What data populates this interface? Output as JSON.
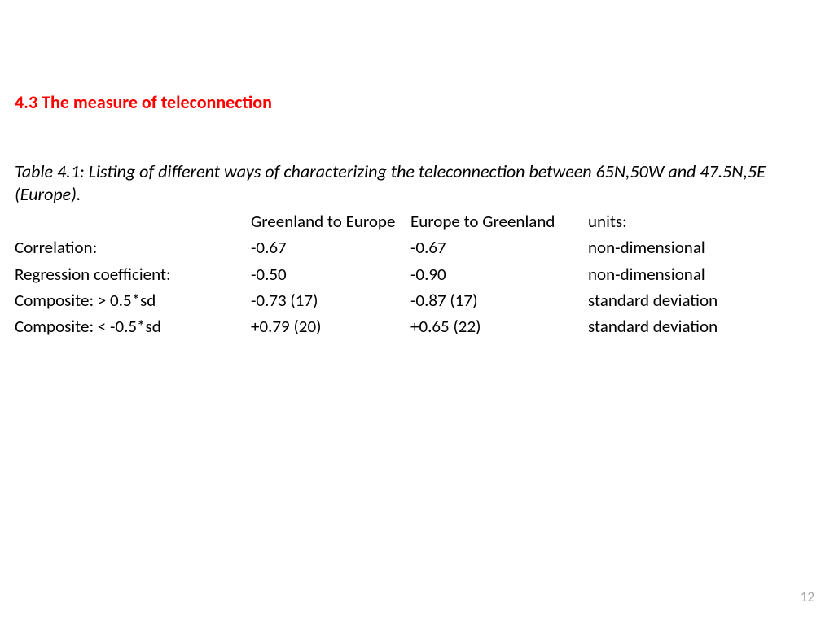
{
  "heading": "4.3 The measure of teleconnection",
  "caption": "Table 4.1: Listing of different ways of characterizing the teleconnection between 65N,50W and 47.5N,5E (Europe).",
  "table": {
    "header": {
      "label": "",
      "col1": "Greenland to Europe",
      "col2": "Europe to Greenland",
      "col3": "units:"
    },
    "rows": [
      {
        "label": "Correlation:",
        "col1": "-0.67",
        "col2": "-0.67",
        "col3": "non-dimensional",
        "units_align": "right"
      },
      {
        "label": "Regression coefficient:",
        "col1": "-0.50",
        "col2": "-0.90",
        "col3": "non-dimensional",
        "units_align": "right"
      },
      {
        "label": "Composite: > 0.5*sd",
        "col1": "-0.73 (17)",
        "col2": "-0.87 (17)",
        "col3": "standard deviation",
        "units_align": "left"
      },
      {
        "label": "Composite: < -0.5*sd",
        "col1": "+0.79 (20)",
        "col2": "+0.65 (22)",
        "col3": "standard deviation",
        "units_align": "left"
      }
    ]
  },
  "page_number": "12",
  "colors": {
    "heading": "#ff0000",
    "text": "#000000",
    "page_number": "#a6a6a6",
    "background": "#ffffff"
  },
  "typography": {
    "heading_fontsize": 22,
    "body_fontsize": 21,
    "caption_fontsize": 22,
    "font_family": "Calibri"
  }
}
